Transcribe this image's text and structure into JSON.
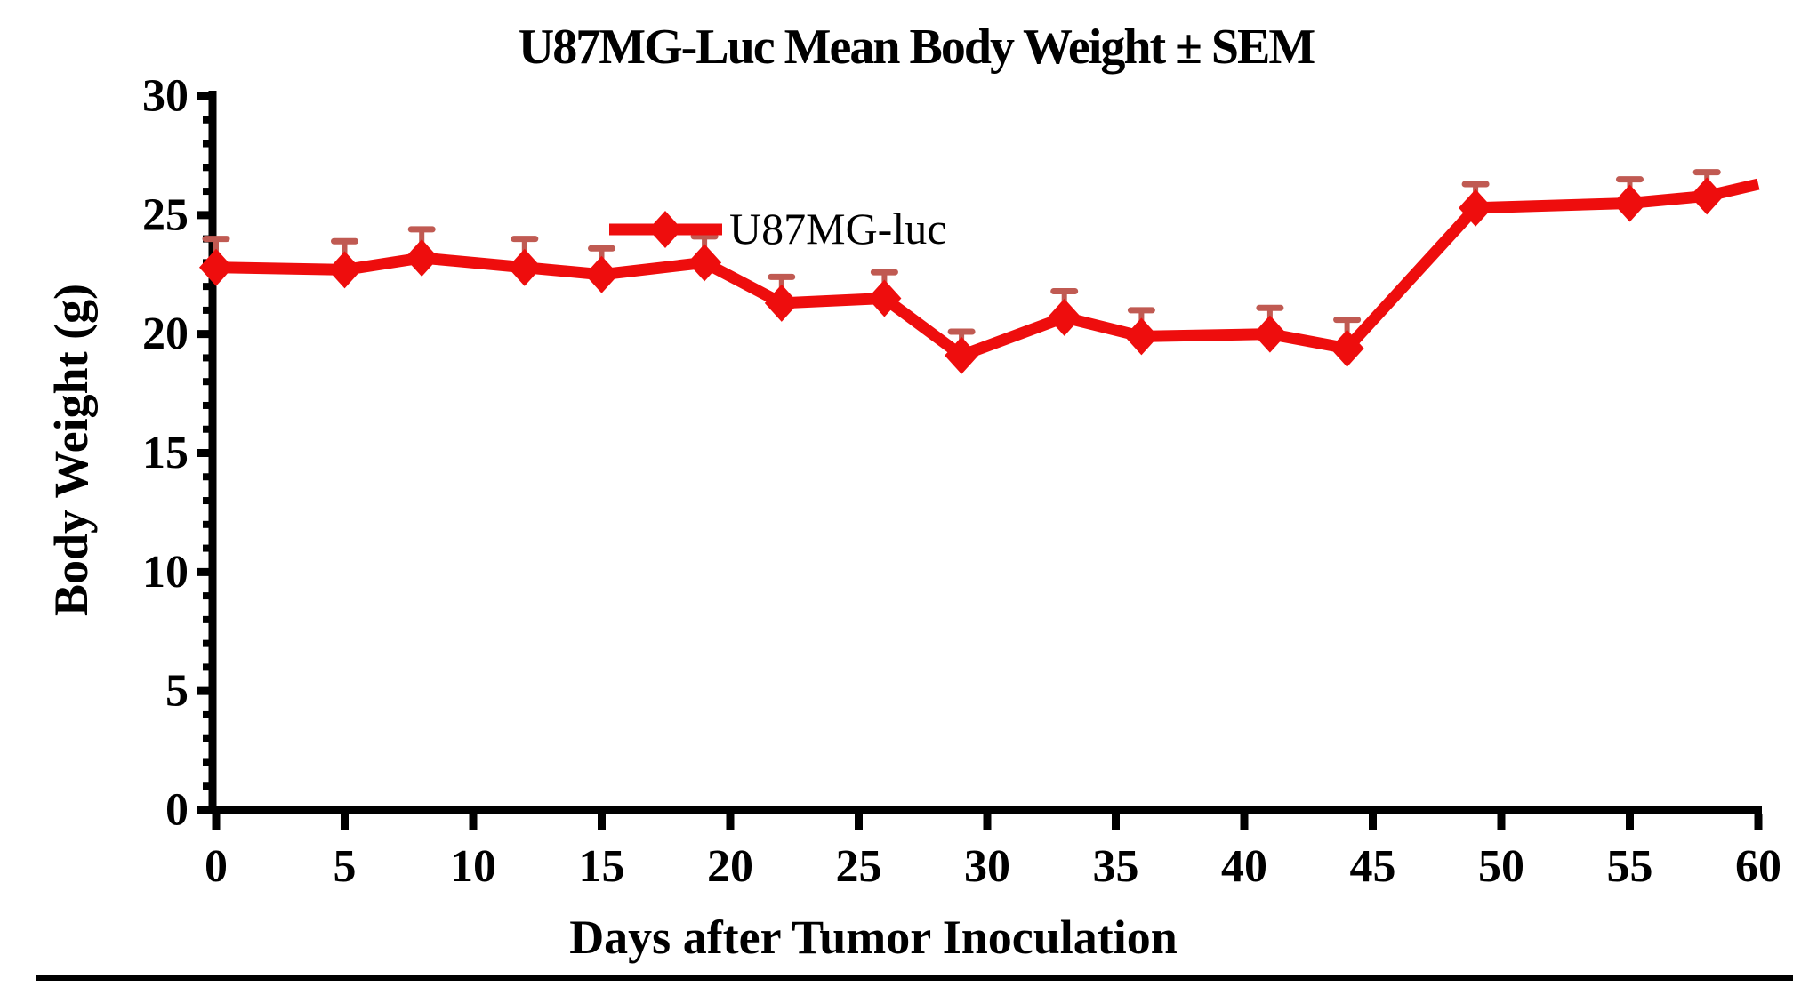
{
  "chart_data": {
    "type": "line",
    "title": "U87MG-Luc Mean Body Weight ± SEM",
    "xlabel": "Days after Tumor Inoculation",
    "ylabel": "Body Weight (g)",
    "legend": {
      "label": "U87MG-luc",
      "position": "inside-top-center"
    },
    "x": [
      0,
      5,
      8,
      12,
      15,
      19,
      22,
      26,
      29,
      33,
      36,
      41,
      44,
      49,
      55,
      58
    ],
    "series": [
      {
        "name": "U87MG-luc",
        "values": [
          22.8,
          22.7,
          23.2,
          22.8,
          22.5,
          23.0,
          21.3,
          21.5,
          19.1,
          20.7,
          19.9,
          20.0,
          19.4,
          25.3,
          25.5,
          25.8
        ],
        "sem_upper": [
          1.2,
          1.2,
          1.2,
          1.2,
          1.1,
          1.1,
          1.1,
          1.1,
          1.0,
          1.1,
          1.1,
          1.1,
          1.2,
          1.0,
          1.0,
          1.0
        ]
      }
    ],
    "line_extension": {
      "x": 60,
      "y": 26.3
    },
    "xlim": [
      0,
      60
    ],
    "ylim": [
      0,
      30
    ],
    "x_major_ticks": [
      0,
      5,
      10,
      15,
      20,
      25,
      30,
      35,
      40,
      45,
      50,
      55,
      60
    ],
    "y_major_ticks": [
      0,
      5,
      10,
      15,
      20,
      25,
      30
    ],
    "y_minor_tick_step": 1,
    "grid": false,
    "error_bar_style": "upper-only",
    "marker": "diamond",
    "colors": {
      "series": "#ee0d0d",
      "error_bar": "#c05a52",
      "axis": "#000000",
      "text": "#000000",
      "background": "#ffffff"
    }
  },
  "page": {
    "bottom_bar_color": "#000000"
  }
}
